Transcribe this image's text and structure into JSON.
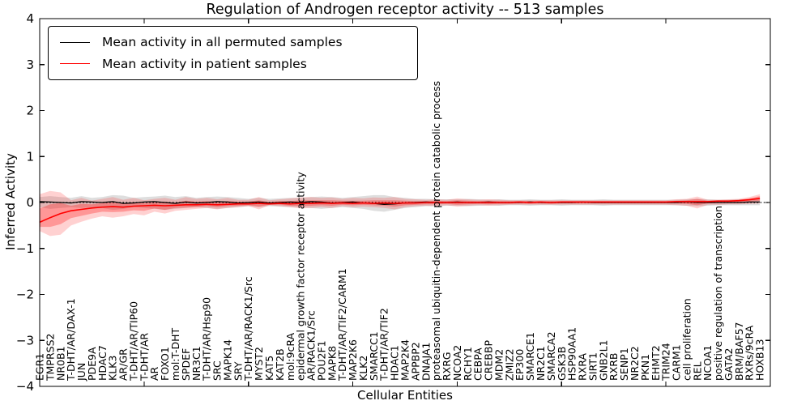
{
  "chart_data": {
    "type": "line",
    "title": "Regulation of Androgen receptor activity -- 513 samples",
    "xlabel": "Cellular Entities",
    "ylabel": "Inferred Activity",
    "ylim": [
      -4,
      4
    ],
    "yticks": [
      4,
      3,
      2,
      1,
      0,
      -1,
      -2,
      -3,
      -4
    ],
    "xtick_mark_indices": [
      10,
      20,
      30,
      40,
      50,
      60
    ],
    "grid": false,
    "zero_line": {
      "style": "dotted",
      "color": "#000000",
      "y": 0
    },
    "legend_position": "upper left",
    "categories": [
      "EGR1",
      "TMPRSS2",
      "NR0B1",
      "T-DHT/AR/DAX-1",
      "JUN",
      "PDE9A",
      "HDAC7",
      "KLK3",
      "AR/GR",
      "T-DHT/AR/TIP60",
      "T-DHT/AR",
      "AR",
      "FOXO1",
      "mol:T-DHT",
      "SPDEF",
      "NR3C1",
      "T-DHT/AR/Hsp90",
      "SRC",
      "MAPK14",
      "SRY",
      "T-DHT/AR/RACK1/Src",
      "MYST2",
      "KAT5",
      "KAT2B",
      "mol:9cRA",
      "epidermal growth factor receptor activity",
      "AR/RACK1/Src",
      "POU2F1",
      "MAPK8",
      "T-DHT/AR/TIF2/CARM1",
      "MAP2K6",
      "KLK2",
      "SMARCC1",
      "T-DHT/AR/TIF2",
      "HDAC1",
      "MAP2K4",
      "APPBP2",
      "DNAJA1",
      "proteasomal ubiquitin-dependent protein catabolic process",
      "RXRG",
      "NCOA2",
      "RCHY1",
      "CEBPA",
      "CREBBP",
      "MDM2",
      "ZMIZ2",
      "EP300",
      "SMARCE1",
      "NR2C1",
      "SMARCA2",
      "GSK3B",
      "HSP90AA1",
      "RXRA",
      "SIRT1",
      "GNB2L1",
      "RXRB",
      "SENP1",
      "NR2C2",
      "PKN1",
      "EHMT2",
      "TRIM24",
      "CARM1",
      "cell proliferation",
      "REL",
      "NCOA1",
      "positive regulation of transcription",
      "GATA2",
      "BRM/BAF57",
      "RXRs/9cRA",
      "HOXB13"
    ],
    "series": [
      {
        "name": "Mean activity in all permuted samples",
        "color": "#000000",
        "values": [
          0.02,
          0.01,
          0.0,
          -0.01,
          0.02,
          0.01,
          0.0,
          0.02,
          -0.02,
          -0.01,
          0.01,
          0.02,
          0.0,
          -0.02,
          0.01,
          -0.01,
          0.0,
          0.02,
          0.01,
          -0.01,
          0.0,
          0.01,
          -0.01,
          0.0,
          0.01,
          0.0,
          0.02,
          0.01,
          -0.01,
          0.0,
          0.01,
          -0.01,
          -0.02,
          -0.04,
          -0.03,
          -0.01,
          0.0,
          0.01,
          0.0,
          0.0,
          0.01,
          0.0,
          0.0,
          0.01,
          0.0,
          0.0,
          0.0,
          0.01,
          0.0,
          0.0,
          0.0,
          0.0,
          0.01,
          0.0,
          0.0,
          0.0,
          0.0,
          0.0,
          0.0,
          0.0,
          0.0,
          0.0,
          0.01,
          0.0,
          0.0,
          0.0,
          0.0,
          0.0,
          0.01,
          0.01
        ],
        "band": {
          "color": "#999999",
          "opacity": 0.32,
          "lo": [
            -0.1,
            -0.14,
            -0.12,
            -0.1,
            -0.12,
            -0.1,
            -0.12,
            -0.16,
            -0.14,
            -0.1,
            -0.12,
            -0.14,
            -0.16,
            -0.14,
            -0.12,
            -0.1,
            -0.12,
            -0.14,
            -0.12,
            -0.1,
            -0.08,
            -0.1,
            -0.08,
            -0.09,
            -0.1,
            -0.1,
            -0.12,
            -0.14,
            -0.12,
            -0.1,
            -0.12,
            -0.14,
            -0.18,
            -0.2,
            -0.16,
            -0.12,
            -0.1,
            -0.08,
            -0.08,
            -0.07,
            -0.07,
            -0.08,
            -0.07,
            -0.06,
            -0.07,
            -0.06,
            -0.06,
            -0.07,
            -0.06,
            -0.06,
            -0.07,
            -0.06,
            -0.06,
            -0.06,
            -0.07,
            -0.06,
            -0.06,
            -0.06,
            -0.06,
            -0.06,
            -0.06,
            -0.06,
            -0.07,
            -0.08,
            -0.07,
            -0.06,
            -0.06,
            -0.06,
            -0.06,
            -0.06
          ],
          "hi": [
            0.12,
            0.14,
            0.12,
            0.1,
            0.14,
            0.1,
            0.12,
            0.16,
            0.15,
            0.1,
            0.12,
            0.13,
            0.15,
            0.12,
            0.14,
            0.1,
            0.12,
            0.13,
            0.12,
            0.1,
            0.08,
            0.1,
            0.08,
            0.09,
            0.1,
            0.1,
            0.12,
            0.13,
            0.12,
            0.1,
            0.12,
            0.14,
            0.16,
            0.16,
            0.12,
            0.1,
            0.08,
            0.08,
            0.07,
            0.07,
            0.07,
            0.08,
            0.07,
            0.06,
            0.07,
            0.06,
            0.06,
            0.07,
            0.06,
            0.06,
            0.07,
            0.06,
            0.06,
            0.06,
            0.07,
            0.06,
            0.06,
            0.06,
            0.06,
            0.06,
            0.06,
            0.06,
            0.07,
            0.08,
            0.07,
            0.06,
            0.06,
            0.07,
            0.07,
            0.08
          ]
        }
      },
      {
        "name": "Mean activity in patient samples",
        "color": "#ff0000",
        "values": [
          -0.43,
          -0.33,
          -0.24,
          -0.18,
          -0.15,
          -0.12,
          -0.1,
          -0.09,
          -0.1,
          -0.08,
          -0.07,
          -0.06,
          -0.07,
          -0.06,
          -0.05,
          -0.05,
          -0.04,
          -0.05,
          -0.04,
          -0.03,
          -0.03,
          -0.02,
          -0.03,
          -0.02,
          -0.03,
          -0.02,
          -0.02,
          -0.01,
          -0.02,
          -0.01,
          -0.02,
          -0.01,
          -0.02,
          -0.01,
          -0.02,
          -0.01,
          -0.01,
          0.0,
          0.0,
          0.0,
          0.0,
          0.0,
          0.0,
          0.0,
          0.0,
          0.0,
          0.01,
          0.0,
          0.01,
          0.0,
          0.01,
          0.01,
          0.01,
          0.01,
          0.01,
          0.01,
          0.01,
          0.01,
          0.01,
          0.01,
          0.01,
          0.02,
          0.02,
          0.02,
          0.02,
          0.03,
          0.03,
          0.04,
          0.06,
          0.09
        ],
        "band_outer": {
          "color": "#ff0000",
          "opacity": 0.18,
          "lo": [
            -0.62,
            -0.73,
            -0.7,
            -0.5,
            -0.42,
            -0.35,
            -0.3,
            -0.33,
            -0.3,
            -0.25,
            -0.28,
            -0.2,
            -0.24,
            -0.18,
            -0.16,
            -0.14,
            -0.12,
            -0.15,
            -0.12,
            -0.1,
            -0.08,
            -0.15,
            -0.06,
            -0.08,
            -0.1,
            -0.13,
            -0.12,
            -0.1,
            -0.12,
            -0.08,
            -0.1,
            -0.09,
            -0.1,
            -0.12,
            -0.15,
            -0.1,
            -0.08,
            -0.07,
            -0.08,
            -0.06,
            -0.09,
            -0.07,
            -0.06,
            -0.07,
            -0.06,
            -0.05,
            -0.05,
            -0.05,
            -0.05,
            -0.05,
            -0.05,
            -0.05,
            -0.05,
            -0.05,
            -0.05,
            -0.05,
            -0.05,
            -0.05,
            -0.05,
            -0.05,
            -0.05,
            -0.06,
            -0.07,
            -0.13,
            -0.05,
            -0.05,
            -0.04,
            -0.04,
            -0.03,
            -0.02
          ],
          "hi": [
            0.18,
            0.25,
            0.22,
            0.05,
            0.1,
            0.04,
            0.08,
            0.12,
            0.06,
            0.1,
            0.05,
            0.08,
            0.1,
            0.06,
            0.12,
            0.08,
            0.1,
            0.07,
            0.1,
            0.06,
            0.06,
            0.12,
            0.05,
            0.07,
            0.09,
            0.11,
            0.12,
            0.1,
            0.11,
            0.08,
            0.1,
            0.09,
            0.11,
            0.1,
            0.12,
            0.08,
            0.07,
            0.06,
            0.07,
            0.06,
            0.09,
            0.07,
            0.06,
            0.07,
            0.06,
            0.05,
            0.05,
            0.05,
            0.05,
            0.05,
            0.05,
            0.05,
            0.05,
            0.05,
            0.05,
            0.05,
            0.05,
            0.05,
            0.05,
            0.05,
            0.05,
            0.07,
            0.08,
            0.13,
            0.06,
            0.06,
            0.07,
            0.08,
            0.12,
            0.18
          ]
        },
        "band_inner": {
          "color": "#ff0000",
          "opacity": 0.28,
          "lo": [
            -0.53,
            -0.53,
            -0.47,
            -0.34,
            -0.29,
            -0.24,
            -0.2,
            -0.21,
            -0.2,
            -0.17,
            -0.18,
            -0.13,
            -0.16,
            -0.12,
            -0.11,
            -0.1,
            -0.08,
            -0.1,
            -0.08,
            -0.07,
            -0.06,
            -0.09,
            -0.05,
            -0.05,
            -0.07,
            -0.08,
            -0.07,
            -0.06,
            -0.07,
            -0.05,
            -0.06,
            -0.05,
            -0.06,
            -0.07,
            -0.09,
            -0.06,
            -0.05,
            -0.04,
            -0.04,
            -0.03,
            -0.05,
            -0.04,
            -0.03,
            -0.04,
            -0.03,
            -0.03,
            -0.02,
            -0.03,
            -0.02,
            -0.03,
            -0.02,
            -0.02,
            -0.02,
            -0.02,
            -0.02,
            -0.02,
            -0.02,
            -0.02,
            -0.02,
            -0.02,
            -0.02,
            -0.02,
            -0.03,
            -0.06,
            -0.02,
            -0.01,
            -0.01,
            0.0,
            0.02,
            0.04
          ],
          "hi": [
            -0.13,
            -0.04,
            -0.01,
            -0.07,
            -0.03,
            -0.04,
            -0.01,
            0.02,
            -0.02,
            0.01,
            -0.01,
            0.01,
            0.02,
            0.0,
            0.04,
            0.02,
            0.03,
            0.01,
            0.03,
            0.02,
            0.02,
            0.05,
            0.01,
            0.03,
            0.03,
            0.05,
            0.05,
            0.05,
            0.05,
            0.04,
            0.04,
            0.04,
            0.05,
            0.05,
            0.05,
            0.04,
            0.03,
            0.03,
            0.04,
            0.03,
            0.05,
            0.04,
            0.03,
            0.04,
            0.03,
            0.03,
            0.03,
            0.03,
            0.03,
            0.03,
            0.03,
            0.03,
            0.03,
            0.03,
            0.03,
            0.03,
            0.03,
            0.03,
            0.03,
            0.03,
            0.03,
            0.04,
            0.05,
            0.08,
            0.04,
            0.05,
            0.05,
            0.06,
            0.09,
            0.14
          ]
        }
      }
    ]
  }
}
